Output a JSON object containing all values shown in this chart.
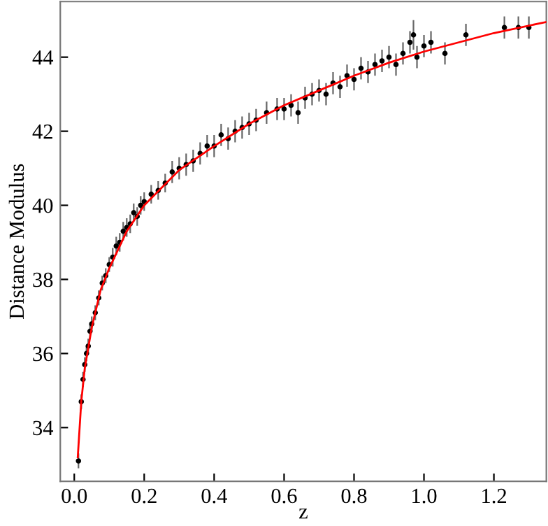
{
  "chart_data": {
    "type": "scatter",
    "xlabel": "z",
    "ylabel": "Distance Modulus",
    "xlim": [
      -0.04,
      1.35
    ],
    "ylim": [
      32.55,
      45.5
    ],
    "xticks": [
      {
        "value": 0,
        "label": "0.0"
      },
      {
        "value": 0.2,
        "label": "0.2"
      },
      {
        "value": 0.4,
        "label": "0.4"
      },
      {
        "value": 0.6,
        "label": "0.6"
      },
      {
        "value": 0.8,
        "label": "0.8"
      },
      {
        "value": 1,
        "label": "1.0"
      },
      {
        "value": 1.2,
        "label": "1.2"
      }
    ],
    "yticks": [
      34,
      36,
      38,
      40,
      42,
      44
    ],
    "grid": false,
    "legend": false,
    "series": [
      {
        "color": "#000000",
        "marker": "circle",
        "x": [
          0.012,
          0.02,
          0.025,
          0.03,
          0.035,
          0.04,
          0.045,
          0.05,
          0.06,
          0.07,
          0.08,
          0.09,
          0.1,
          0.11,
          0.12,
          0.13,
          0.14,
          0.15,
          0.16,
          0.17,
          0.18,
          0.19,
          0.2,
          0.22,
          0.24,
          0.26,
          0.28,
          0.3,
          0.32,
          0.34,
          0.36,
          0.38,
          0.4,
          0.42,
          0.44,
          0.46,
          0.48,
          0.5,
          0.52,
          0.55,
          0.58,
          0.6,
          0.62,
          0.64,
          0.66,
          0.68,
          0.7,
          0.72,
          0.74,
          0.76,
          0.78,
          0.8,
          0.82,
          0.84,
          0.86,
          0.88,
          0.9,
          0.92,
          0.94,
          0.96,
          0.97,
          0.98,
          1.0,
          1.02,
          1.06,
          1.12,
          1.23,
          1.27,
          1.3
        ],
        "values": [
          33.1,
          34.7,
          35.3,
          35.7,
          36.0,
          36.2,
          36.6,
          36.8,
          37.1,
          37.5,
          37.9,
          38.1,
          38.4,
          38.6,
          38.9,
          39.0,
          39.3,
          39.4,
          39.5,
          39.8,
          39.7,
          40.0,
          40.1,
          40.3,
          40.4,
          40.6,
          40.9,
          41.0,
          41.1,
          41.2,
          41.4,
          41.6,
          41.6,
          41.9,
          41.8,
          42.0,
          42.1,
          42.2,
          42.3,
          42.5,
          42.6,
          42.6,
          42.7,
          42.5,
          42.9,
          43.0,
          43.1,
          43.0,
          43.3,
          43.2,
          43.5,
          43.4,
          43.7,
          43.6,
          43.8,
          43.9,
          44.0,
          43.8,
          44.1,
          44.4,
          44.6,
          44.0,
          44.3,
          44.4,
          44.1,
          44.6,
          44.8,
          44.8,
          44.8
        ],
        "errors": [
          0.2,
          0.2,
          0.2,
          0.2,
          0.2,
          0.2,
          0.2,
          0.2,
          0.2,
          0.2,
          0.2,
          0.2,
          0.2,
          0.25,
          0.25,
          0.25,
          0.25,
          0.25,
          0.25,
          0.25,
          0.25,
          0.25,
          0.25,
          0.25,
          0.25,
          0.25,
          0.3,
          0.3,
          0.3,
          0.3,
          0.3,
          0.3,
          0.3,
          0.3,
          0.3,
          0.3,
          0.3,
          0.3,
          0.3,
          0.3,
          0.3,
          0.3,
          0.3,
          0.3,
          0.3,
          0.3,
          0.3,
          0.3,
          0.3,
          0.3,
          0.3,
          0.3,
          0.3,
          0.3,
          0.3,
          0.3,
          0.3,
          0.3,
          0.3,
          0.3,
          0.4,
          0.3,
          0.3,
          0.3,
          0.3,
          0.3,
          0.3,
          0.3,
          0.3
        ]
      },
      {
        "type": "line",
        "color": "#ff0000",
        "marker": "none",
        "line_style": "solid",
        "x": [
          0.01,
          0.02,
          0.03,
          0.05,
          0.075,
          0.1,
          0.15,
          0.2,
          0.3,
          0.4,
          0.5,
          0.6,
          0.7,
          0.8,
          0.9,
          1.0,
          1.1,
          1.2,
          1.35
        ],
        "values": [
          33.2,
          34.7,
          35.6,
          36.7,
          37.7,
          38.3,
          39.3,
          40.0,
          40.95,
          41.6,
          42.2,
          42.7,
          43.1,
          43.5,
          43.85,
          44.15,
          44.4,
          44.65,
          44.95
        ]
      }
    ]
  }
}
